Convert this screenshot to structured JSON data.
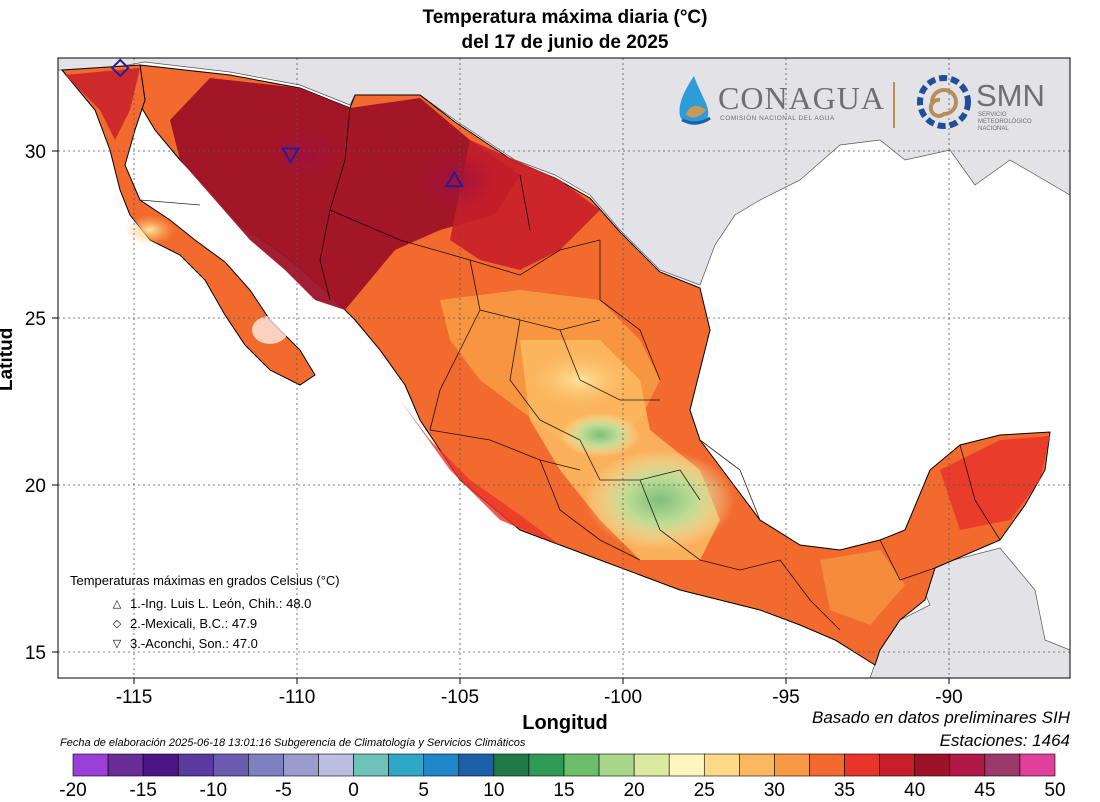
{
  "title": {
    "line1": "Temperatura máxima diaria (°C)",
    "line2": "del 17 de junio de 2025"
  },
  "axes": {
    "xlabel": "Longitud",
    "ylabel": "Latitud",
    "xticks": [
      "-115",
      "-110",
      "-105",
      "-100",
      "-95",
      "-90"
    ],
    "yticks": [
      "30",
      "25",
      "20",
      "15"
    ]
  },
  "logos": {
    "conagua": "CONAGUA",
    "conagua_sub": "COMISIÓN NACIONAL DEL AGUA",
    "smn": "SMN",
    "smn_sub": "SERVICIO METEOROLÓGICO NACIONAL"
  },
  "legend": {
    "title": "Temperaturas máximas en grados Celsius (°C)",
    "entries": [
      {
        "symbol": "triangle-up",
        "text": "1.-Ing. Luis L. León, Chih.: 48.0"
      },
      {
        "symbol": "diamond",
        "text": "2.-Mexicali, B.C.: 47.9"
      },
      {
        "symbol": "triangle-down",
        "text": "3.-Aconchi, Son.: 47.0"
      }
    ]
  },
  "footer": {
    "basado": "Basado en datos preliminares SIH",
    "estaciones": "Estaciones:  1464",
    "fecha": "Fecha de elaboración 2025-06-18 13:01:16 Subgerencia de Climatología y Servicios Climáticos"
  },
  "colorbar": {
    "labels": [
      "-20",
      "-15",
      "-10",
      "-5",
      "0",
      "5",
      "10",
      "15",
      "20",
      "25",
      "30",
      "35",
      "40",
      "45",
      "50"
    ],
    "colors": [
      "#9b3fdb",
      "#6a2d98",
      "#4a1587",
      "#5b3aa0",
      "#6c5cb0",
      "#7f80c0",
      "#9a9ccc",
      "#bdbde0",
      "#6fc2b8",
      "#2fa8c8",
      "#1f86c8",
      "#1e5faa",
      "#1f7a45",
      "#2f9a55",
      "#6cbd6a",
      "#a8d68a",
      "#dce9a0",
      "#fbf6c0",
      "#fdd988",
      "#fbb860",
      "#f79a43",
      "#f26a2e",
      "#e8342a",
      "#c81e2a",
      "#9e1228",
      "#b0184a",
      "#9a3a6a",
      "#e0409a"
    ]
  },
  "chart_data": {
    "type": "heatmap",
    "title": "Temperatura máxima diaria (°C) del 17 de junio de 2025",
    "xlabel": "Longitud",
    "ylabel": "Latitud",
    "xlim": [
      -117.3,
      -86.4
    ],
    "ylim": [
      14.0,
      32.7
    ],
    "colorbar_range": [
      -20,
      50
    ],
    "stations": [
      {
        "rank": 1,
        "name": "Ing. Luis L. León, Chih.",
        "value": 48.0,
        "lon": -105.2,
        "lat": 29.0,
        "symbol": "triangle-up"
      },
      {
        "rank": 2,
        "name": "Mexicali, B.C.",
        "value": 47.9,
        "lon": -115.4,
        "lat": 32.4,
        "symbol": "diamond"
      },
      {
        "rank": 3,
        "name": "Aconchi, Son.",
        "value": 47.0,
        "lon": -110.2,
        "lat": 29.8,
        "symbol": "triangle-down"
      }
    ],
    "station_count": 1464,
    "grid": true
  }
}
